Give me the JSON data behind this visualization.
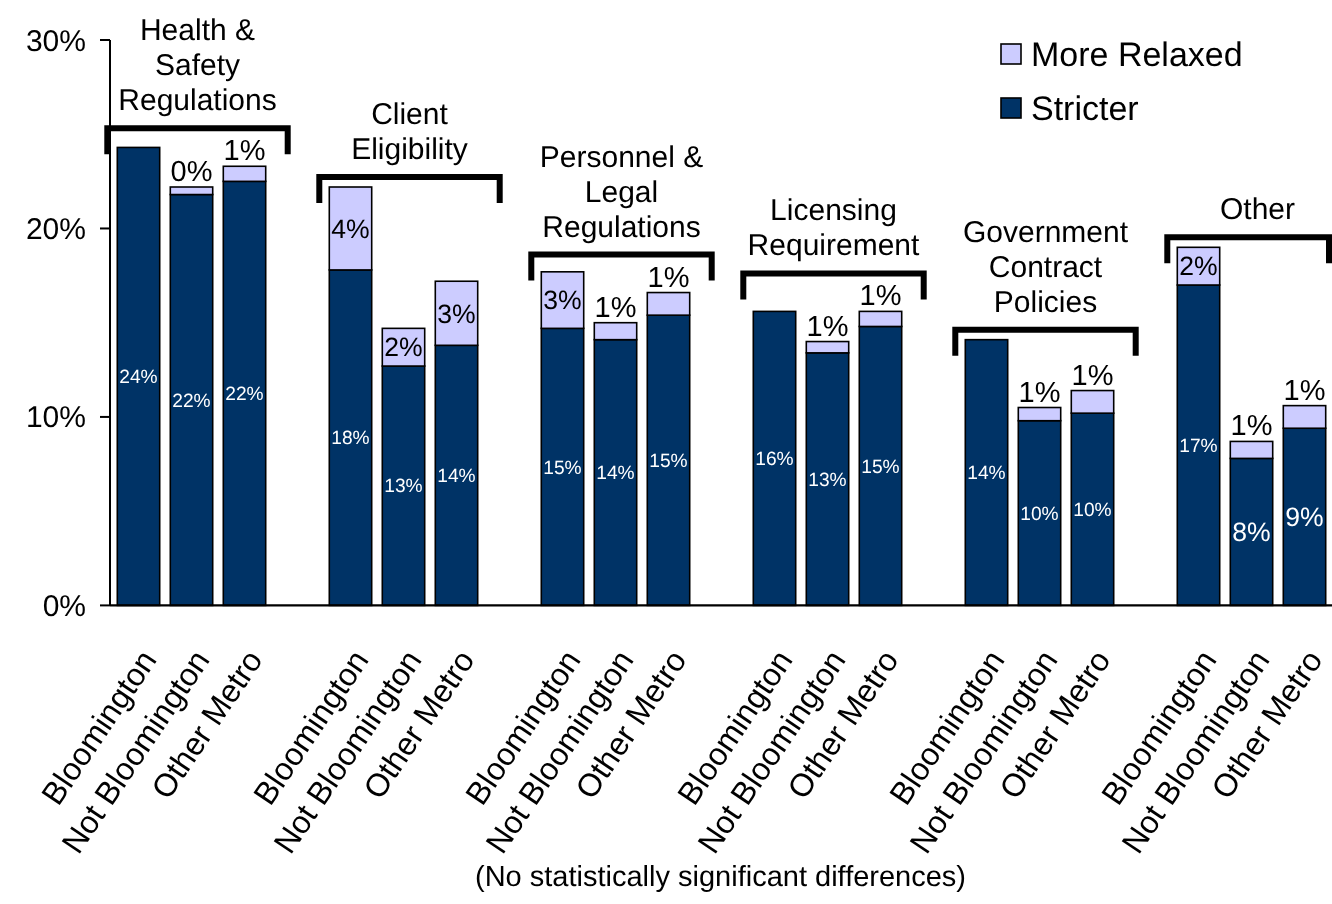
{
  "chart_data": {
    "type": "bar",
    "stacked": true,
    "categories": [
      "Bloomington",
      "Not Bloomington",
      "Other Metro",
      null,
      "Bloomington",
      "Not Bloomington",
      "Other Metro",
      null,
      "Bloomington",
      "Not Bloomington",
      "Other Metro",
      null,
      "Bloomington",
      "Not Bloomington",
      "Other Metro",
      null,
      "Bloomington",
      "Not Bloomington",
      "Other Metro",
      null,
      "Bloomington",
      "Not Bloomington",
      "Other Metro"
    ],
    "series": [
      {
        "name": "Stricter",
        "color": "#003366",
        "values": [
          24.3,
          21.8,
          22.5,
          null,
          17.8,
          12.7,
          13.8,
          null,
          14.7,
          14.1,
          15.4,
          null,
          15.6,
          13.4,
          14.8,
          null,
          14.1,
          9.8,
          10.2,
          null,
          17.0,
          7.8,
          9.4
        ],
        "value_labels": [
          "24%",
          "22%",
          "22%",
          null,
          "18%",
          "13%",
          "14%",
          null,
          "15%",
          "14%",
          "15%",
          null,
          "16%",
          "13%",
          "15%",
          null,
          "14%",
          "10%",
          "10%",
          null,
          "17%",
          "8%",
          "9%"
        ]
      },
      {
        "name": "More Relaxed",
        "color": "#ccccff",
        "values": [
          null,
          0.4,
          0.8,
          null,
          4.4,
          2.0,
          3.4,
          null,
          3.0,
          0.9,
          1.2,
          null,
          null,
          0.6,
          0.8,
          null,
          null,
          0.7,
          1.2,
          null,
          2.0,
          0.9,
          1.2
        ],
        "value_labels": [
          null,
          "0%",
          "1%",
          null,
          "4%",
          "2%",
          "3%",
          null,
          "3%",
          "1%",
          "1%",
          null,
          null,
          "1%",
          "1%",
          null,
          null,
          "1%",
          "1%",
          null,
          "2%",
          "1%",
          "1%"
        ]
      }
    ],
    "ylim": [
      0,
      30
    ],
    "yticks": [
      {
        "value": 0,
        "label": "0%"
      },
      {
        "value": 10,
        "label": "10%"
      },
      {
        "value": 20,
        "label": "20%"
      },
      {
        "value": 30,
        "label": "30%"
      }
    ],
    "legend": "top right",
    "annotations": [
      "Health & Safety Regulations",
      "Client Eligibility",
      "Personnel & Legal Regulations",
      "Licensing Requirement",
      "Government Contract Policies",
      "Other",
      "(No statistically significant differences)"
    ]
  }
}
